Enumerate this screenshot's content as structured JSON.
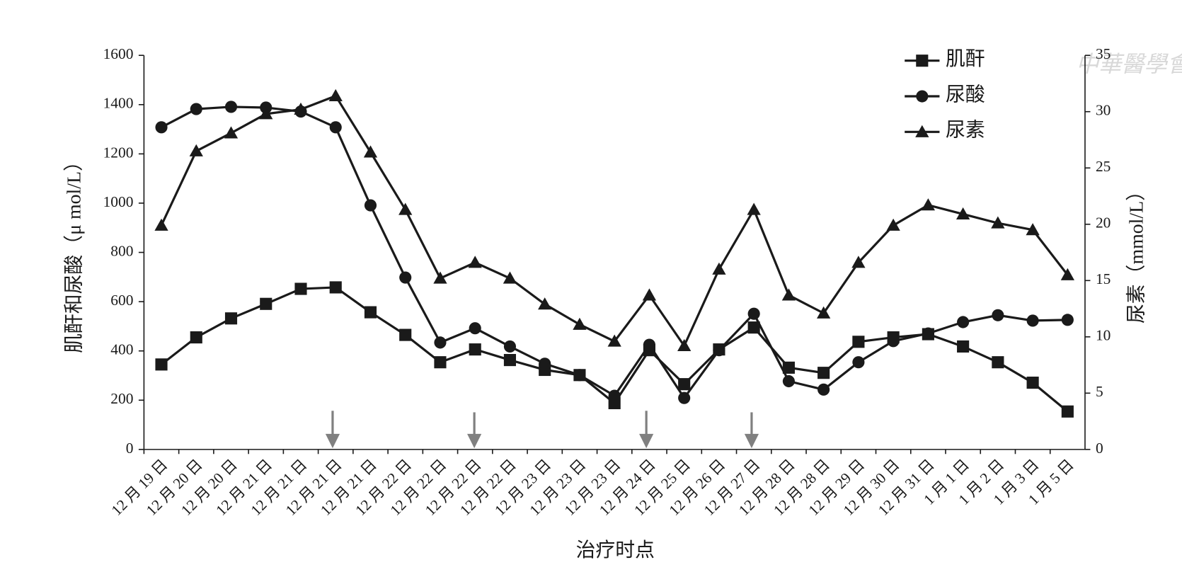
{
  "chart_data": {
    "type": "line",
    "x_label": "治疗时点",
    "y_label": "肌酐和尿酸（μ mol/L）",
    "y2_label": "尿素（mmol/L）",
    "watermark": "中華醫學會",
    "categories": [
      "12 月 19 日",
      "12 月 20 日",
      "12 月 20 日",
      "12 月 21 日",
      "12 月 21 日",
      "12 月 21 日",
      "12 月 21 日",
      "12 月 22 日",
      "12 月 22 日",
      "12 月 22 日",
      "12 月 22 日",
      "12 月 23 日",
      "12 月 23 日",
      "12 月 23 日",
      "12 月 24 日",
      "12 月 25 日",
      "12 月 26 日",
      "12 月 27 日",
      "12 月 28 日",
      "12 月 28 日",
      "12 月 29 日",
      "12 月 30 日",
      "12 月 31 日",
      "1 月 1 日",
      "1 月 2 日",
      "1 月 3 日",
      "1 月 5 日"
    ],
    "series": [
      {
        "name": "肌酐",
        "marker": "square",
        "color": "#1a1a1a",
        "values": [
          345,
          455,
          532,
          591,
          652,
          658,
          557,
          465,
          354,
          406,
          363,
          323,
          302,
          188,
          403,
          265,
          406,
          495,
          332,
          311,
          437,
          455,
          468,
          418,
          354,
          271,
          154
        ]
      },
      {
        "name": "尿酸",
        "marker": "circle",
        "color": "#1a1a1a",
        "values": [
          1308,
          1382,
          1391,
          1388,
          1372,
          1308,
          991,
          698,
          434,
          492,
          418,
          348,
          302,
          218,
          425,
          209,
          403,
          551,
          277,
          243,
          354,
          440,
          471,
          517,
          545,
          523,
          526
        ]
      },
      {
        "name": "尿素",
        "marker": "triangle",
        "color": "#1a1a1a",
        "axis": "y2",
        "values": [
          19.9,
          26.5,
          28.1,
          29.8,
          30.2,
          31.4,
          26.4,
          21.3,
          15.2,
          16.6,
          15.2,
          12.9,
          11.1,
          9.6,
          13.7,
          9.2,
          16.0,
          21.3,
          13.7,
          12.1,
          16.6,
          19.9,
          21.7,
          20.9,
          20.1,
          19.5,
          15.5
        ]
      }
    ],
    "ylim": [
      0,
      1600
    ],
    "yticks": [
      0,
      200,
      400,
      600,
      800,
      1000,
      1200,
      1400,
      1600
    ],
    "y2lim": [
      0,
      35
    ],
    "y2ticks": [
      0,
      5,
      10,
      15,
      20,
      25,
      30,
      35
    ],
    "legend": "top-right"
  }
}
